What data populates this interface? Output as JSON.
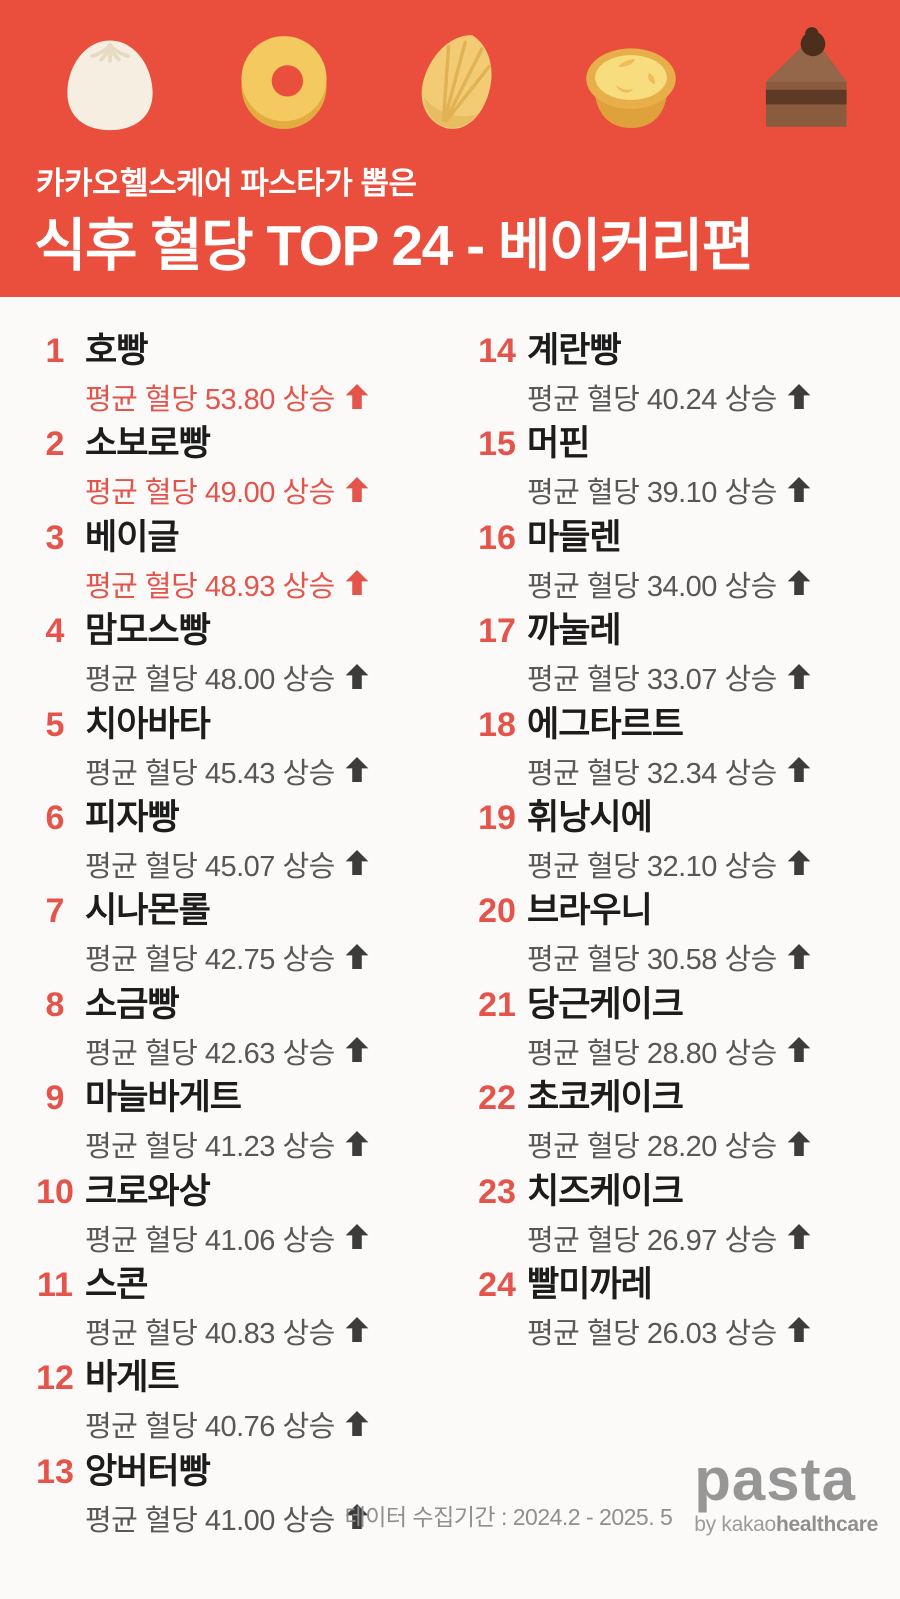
{
  "header": {
    "subtitle": "카카오헬스케어 파스타가 뽑은",
    "title": "식후 혈당 TOP 24 - 베이커리편",
    "icons": [
      "steamed-bun",
      "donut",
      "madeleine",
      "egg-tart",
      "chocolate-cake"
    ]
  },
  "colors": {
    "accent_red": "#E94F3C",
    "highlight_red": "#E4544B",
    "name_dark": "#1C1C1C",
    "metric_gray": "#575757",
    "arrow_dark": "#3C3C3C",
    "background": "#FBFAF8",
    "footer_gray": "#8F8F8F"
  },
  "list": {
    "metric_prefix": "평균 혈당",
    "metric_suffix": "상승",
    "items": [
      {
        "rank": "1",
        "name": "호빵",
        "value": "53.80",
        "highlight": true
      },
      {
        "rank": "2",
        "name": "소보로빵",
        "value": "49.00",
        "highlight": true
      },
      {
        "rank": "3",
        "name": "베이글",
        "value": "48.93",
        "highlight": true
      },
      {
        "rank": "4",
        "name": "맘모스빵",
        "value": "48.00",
        "highlight": false
      },
      {
        "rank": "5",
        "name": "치아바타",
        "value": "45.43",
        "highlight": false
      },
      {
        "rank": "6",
        "name": "피자빵",
        "value": "45.07",
        "highlight": false
      },
      {
        "rank": "7",
        "name": "시나몬롤",
        "value": "42.75",
        "highlight": false
      },
      {
        "rank": "8",
        "name": "소금빵",
        "value": "42.63",
        "highlight": false
      },
      {
        "rank": "9",
        "name": "마늘바게트",
        "value": "41.23",
        "highlight": false
      },
      {
        "rank": "10",
        "name": "크로와상",
        "value": "41.06",
        "highlight": false
      },
      {
        "rank": "11",
        "name": "스콘",
        "value": "40.83",
        "highlight": false
      },
      {
        "rank": "12",
        "name": "바게트",
        "value": "40.76",
        "highlight": false
      },
      {
        "rank": "13",
        "name": "앙버터빵",
        "value": "41.00",
        "highlight": false
      },
      {
        "rank": "14",
        "name": "계란빵",
        "value": "40.24",
        "highlight": false
      },
      {
        "rank": "15",
        "name": "머핀",
        "value": "39.10",
        "highlight": false
      },
      {
        "rank": "16",
        "name": "마들렌",
        "value": "34.00",
        "highlight": false
      },
      {
        "rank": "17",
        "name": "까눌레",
        "value": "33.07",
        "highlight": false
      },
      {
        "rank": "18",
        "name": "에그타르트",
        "value": "32.34",
        "highlight": false
      },
      {
        "rank": "19",
        "name": "휘낭시에",
        "value": "32.10",
        "highlight": false
      },
      {
        "rank": "20",
        "name": "브라우니",
        "value": "30.58",
        "highlight": false
      },
      {
        "rank": "21",
        "name": "당근케이크",
        "value": "28.80",
        "highlight": false
      },
      {
        "rank": "22",
        "name": "초코케이크",
        "value": "28.20",
        "highlight": false
      },
      {
        "rank": "23",
        "name": "치즈케이크",
        "value": "26.97",
        "highlight": false
      },
      {
        "rank": "24",
        "name": "빨미까레",
        "value": "26.03",
        "highlight": false
      }
    ]
  },
  "footer": {
    "period": "데이터 수집기간 : 2024.2 - 2025. 5",
    "logo": "pasta",
    "logo_by": "by kakao",
    "logo_by_bold": "healthcare"
  },
  "chart_data": {
    "type": "table",
    "title": "식후 혈당 TOP 24 - 베이커리편",
    "subtitle": "카카오헬스케어 파스타가 뽑은",
    "ylabel": "평균 혈당 상승",
    "categories": [
      "호빵",
      "소보로빵",
      "베이글",
      "맘모스빵",
      "치아바타",
      "피자빵",
      "시나몬롤",
      "소금빵",
      "마늘바게트",
      "크로와상",
      "스콘",
      "바게트",
      "앙버터빵",
      "계란빵",
      "머핀",
      "마들렌",
      "까눌레",
      "에그타르트",
      "휘낭시에",
      "브라우니",
      "당근케이크",
      "초코케이크",
      "치즈케이크",
      "빨미까레"
    ],
    "values": [
      53.8,
      49.0,
      48.93,
      48.0,
      45.43,
      45.07,
      42.75,
      42.63,
      41.23,
      41.06,
      40.83,
      40.76,
      41.0,
      40.24,
      39.1,
      34.0,
      33.07,
      32.34,
      32.1,
      30.58,
      28.8,
      28.2,
      26.97,
      26.03
    ],
    "annotations": [
      "데이터 수집기간 : 2024.2 - 2025. 5"
    ]
  }
}
